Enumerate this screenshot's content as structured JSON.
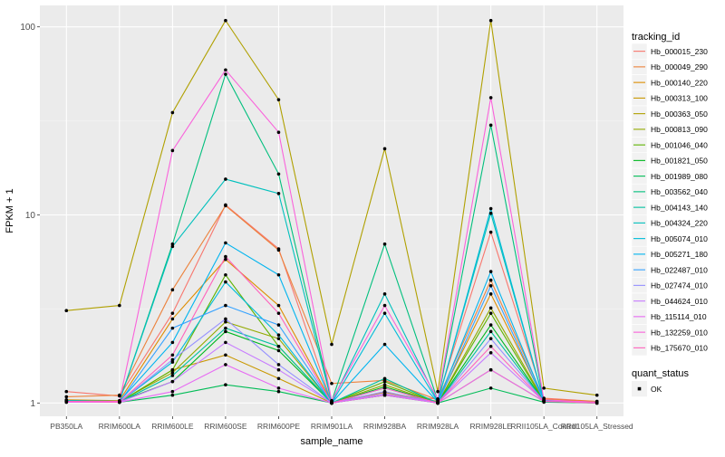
{
  "chart_data": {
    "type": "line",
    "xlabel": "sample_name",
    "ylabel": "FPKM + 1",
    "y_scale": "log10",
    "ylim": [
      0.85,
      130
    ],
    "y_ticks": [
      1,
      10,
      100
    ],
    "y_tick_labels": [
      "1",
      "10",
      "100"
    ],
    "grid": true,
    "legend_position": "right",
    "panel_background": "#ebebeb",
    "categories": [
      "PB350LA",
      "RRIM600LA",
      "RRIM600LE",
      "RRIM600SE",
      "RRIM600PE",
      "RRIM901LA",
      "RRIM928BA",
      "RRIM928LA",
      "RRIM928LE",
      "RRII105LA_Control",
      "RRII105LA_Stressed"
    ],
    "legend": {
      "title": "tracking_id",
      "marker_title": "quant_status",
      "marker_label": "OK"
    },
    "series": [
      {
        "name": "Hb_000015_230",
        "color": "#f8766d",
        "values": [
          1.15,
          1.09,
          3.0,
          11.3,
          6.6,
          1.0,
          1.1,
          1.05,
          8.1,
          1.06,
          1.02
        ]
      },
      {
        "name": "Hb_000049_290",
        "color": "#ec823c",
        "values": [
          1.08,
          1.1,
          4.0,
          11.2,
          6.5,
          1.27,
          1.32,
          1.04,
          4.5,
          1.05,
          1.01
        ]
      },
      {
        "name": "Hb_000140_220",
        "color": "#dd8d00",
        "values": [
          1.04,
          1.03,
          2.8,
          5.8,
          3.3,
          1.01,
          1.14,
          1.02,
          3.8,
          1.04,
          1.02
        ]
      },
      {
        "name": "Hb_000313_100",
        "color": "#c99800",
        "values": [
          1.03,
          1.01,
          1.5,
          1.8,
          1.35,
          1.0,
          1.14,
          1.0,
          1.5,
          1.02,
          1.01
        ]
      },
      {
        "name": "Hb_000363_050",
        "color": "#b0a000",
        "values": [
          3.1,
          3.3,
          35.0,
          108.0,
          41.0,
          2.05,
          22.5,
          1.15,
          108.0,
          1.2,
          1.1
        ]
      },
      {
        "name": "Hb_000813_090",
        "color": "#93aa00",
        "values": [
          1.02,
          1.02,
          1.45,
          2.7,
          2.2,
          1.0,
          1.25,
          1.0,
          3.2,
          1.03,
          1.0
        ]
      },
      {
        "name": "Hb_001046_040",
        "color": "#5eb300",
        "values": [
          1.02,
          1.01,
          1.5,
          4.8,
          2.0,
          1.0,
          1.3,
          1.0,
          3.0,
          1.02,
          1.0
        ]
      },
      {
        "name": "Hb_001821_050",
        "color": "#00b81f",
        "values": [
          1.01,
          1.02,
          1.3,
          2.4,
          1.9,
          1.0,
          1.22,
          1.0,
          2.6,
          1.02,
          1.01
        ]
      },
      {
        "name": "Hb_001989_080",
        "color": "#00bc56",
        "values": [
          1.02,
          1.01,
          1.1,
          1.25,
          1.15,
          1.0,
          1.1,
          1.0,
          1.2,
          1.01,
          1.0
        ]
      },
      {
        "name": "Hb_003562_040",
        "color": "#00bf7d",
        "values": [
          1.03,
          1.02,
          7.0,
          56.0,
          16.5,
          1.02,
          7.0,
          1.03,
          30.0,
          1.02,
          1.01
        ]
      },
      {
        "name": "Hb_004143_140",
        "color": "#00c19f",
        "values": [
          1.02,
          1.01,
          1.4,
          2.5,
          2.0,
          1.0,
          1.35,
          1.0,
          2.4,
          1.02,
          1.01
        ]
      },
      {
        "name": "Hb_004324_220",
        "color": "#00c0bd",
        "values": [
          1.03,
          1.02,
          6.8,
          15.5,
          13.0,
          1.01,
          3.8,
          1.02,
          10.2,
          1.03,
          1.01
        ]
      },
      {
        "name": "Hb_005074_010",
        "color": "#00bcd8",
        "values": [
          1.02,
          1.01,
          1.65,
          4.4,
          2.3,
          1.0,
          3.0,
          1.01,
          10.8,
          1.02,
          1.01
        ]
      },
      {
        "name": "Hb_005271_180",
        "color": "#00b4ef",
        "values": [
          1.02,
          1.02,
          2.1,
          7.1,
          4.8,
          1.0,
          2.05,
          1.01,
          5.0,
          1.03,
          1.01
        ]
      },
      {
        "name": "Hb_022487_010",
        "color": "#35a2ff",
        "values": [
          1.02,
          1.01,
          2.5,
          3.3,
          2.6,
          1.0,
          1.2,
          1.0,
          4.2,
          1.02,
          1.01
        ]
      },
      {
        "name": "Hb_027474_010",
        "color": "#9590ff",
        "values": [
          1.02,
          1.01,
          1.7,
          2.8,
          1.6,
          1.0,
          1.15,
          1.0,
          2.2,
          1.02,
          1.0
        ]
      },
      {
        "name": "Hb_044624_010",
        "color": "#c77cff",
        "values": [
          1.02,
          1.01,
          1.3,
          2.1,
          1.5,
          1.0,
          1.12,
          1.0,
          1.85,
          1.02,
          1.01
        ]
      },
      {
        "name": "Hb_115114_010",
        "color": "#e76bf3",
        "values": [
          1.01,
          1.01,
          1.15,
          1.6,
          1.2,
          1.0,
          1.1,
          1.0,
          1.5,
          1.02,
          1.01
        ]
      },
      {
        "name": "Hb_132259_010",
        "color": "#fa62db",
        "values": [
          1.02,
          1.02,
          22.0,
          59.0,
          27.5,
          1.03,
          3.3,
          1.05,
          42.0,
          1.04,
          1.01
        ]
      },
      {
        "name": "Hb_175670_010",
        "color": "#ff62bc",
        "values": [
          1.02,
          1.01,
          1.8,
          6.0,
          3.0,
          1.0,
          1.2,
          1.0,
          2.0,
          1.02,
          1.0
        ]
      }
    ]
  }
}
